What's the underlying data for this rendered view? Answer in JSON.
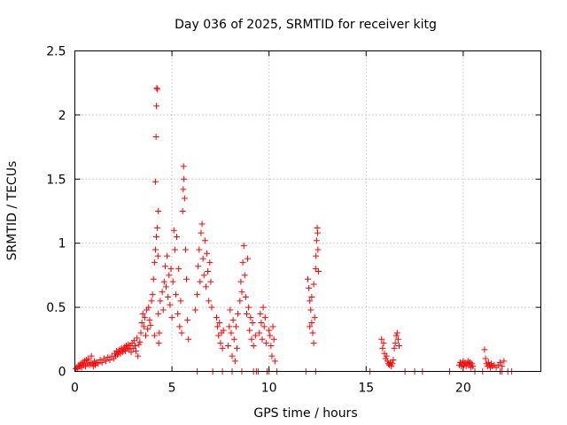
{
  "chart_data": {
    "type": "scatter",
    "title": "Day 036 of 2025, SRMTID for receiver kitg",
    "xlabel": "GPS time / hours",
    "ylabel": "SRMTID / TECUs",
    "xlim": [
      0,
      24
    ],
    "ylim": [
      0,
      2.5
    ],
    "xticks": [
      0,
      5,
      10,
      15,
      20
    ],
    "yticks": [
      0,
      0.5,
      1,
      1.5,
      2,
      2.5
    ],
    "xtick_labels": [
      "0",
      "5",
      "10",
      "15",
      "20"
    ],
    "ytick_labels": [
      "0",
      "0.5",
      "1",
      "1.5",
      "2",
      "2.5"
    ],
    "grid": true,
    "marker": "+",
    "color": "#ff0000",
    "series": [
      {
        "name": "SRMTID",
        "points": [
          [
            0.05,
            0.02
          ],
          [
            0.1,
            0.03
          ],
          [
            0.15,
            0.02
          ],
          [
            0.2,
            0.05
          ],
          [
            0.25,
            0.04
          ],
          [
            0.3,
            0.06
          ],
          [
            0.35,
            0.03
          ],
          [
            0.4,
            0.07
          ],
          [
            0.45,
            0.05
          ],
          [
            0.5,
            0.08
          ],
          [
            0.55,
            0.04
          ],
          [
            0.6,
            0.09
          ],
          [
            0.65,
            0.06
          ],
          [
            0.7,
            0.1
          ],
          [
            0.75,
            0.05
          ],
          [
            0.8,
            0.07
          ],
          [
            0.85,
            0.12
          ],
          [
            0.9,
            0.06
          ],
          [
            0.95,
            0.04
          ],
          [
            1.0,
            0.08
          ],
          [
            1.05,
            0.05
          ],
          [
            1.1,
            0.07
          ],
          [
            1.2,
            0.06
          ],
          [
            1.3,
            0.09
          ],
          [
            1.4,
            0.07
          ],
          [
            1.5,
            0.1
          ],
          [
            1.6,
            0.08
          ],
          [
            1.7,
            0.11
          ],
          [
            1.8,
            0.09
          ],
          [
            1.9,
            0.12
          ],
          [
            2.0,
            0.1
          ],
          [
            2.05,
            0.14
          ],
          [
            2.1,
            0.12
          ],
          [
            2.15,
            0.16
          ],
          [
            2.2,
            0.13
          ],
          [
            2.25,
            0.15
          ],
          [
            2.3,
            0.17
          ],
          [
            2.35,
            0.14
          ],
          [
            2.4,
            0.18
          ],
          [
            2.45,
            0.15
          ],
          [
            2.5,
            0.17
          ],
          [
            2.55,
            0.19
          ],
          [
            2.6,
            0.16
          ],
          [
            2.65,
            0.2
          ],
          [
            2.7,
            0.18
          ],
          [
            2.75,
            0.21
          ],
          [
            2.8,
            0.17
          ],
          [
            2.85,
            0.2
          ],
          [
            2.9,
            0.15
          ],
          [
            2.95,
            0.22
          ],
          [
            3.0,
            0.18
          ],
          [
            3.05,
            0.24
          ],
          [
            3.1,
            0.2
          ],
          [
            3.15,
            0.16
          ],
          [
            3.2,
            0.26
          ],
          [
            3.25,
            0.12
          ],
          [
            3.3,
            0.21
          ],
          [
            3.35,
            0.23
          ],
          [
            3.4,
            0.3
          ],
          [
            3.45,
            0.38
          ],
          [
            3.5,
            0.45
          ],
          [
            3.55,
            0.35
          ],
          [
            3.6,
            0.42
          ],
          [
            3.65,
            0.28
          ],
          [
            3.7,
            0.48
          ],
          [
            3.75,
            0.33
          ],
          [
            3.8,
            0.5
          ],
          [
            3.85,
            0.4
          ],
          [
            3.9,
            0.36
          ],
          [
            3.95,
            0.55
          ],
          [
            4.0,
            0.6
          ],
          [
            4.05,
            0.72
          ],
          [
            4.1,
            0.85
          ],
          [
            4.15,
            0.95
          ],
          [
            4.2,
            1.05
          ],
          [
            4.25,
            1.12
          ],
          [
            4.3,
            1.25
          ],
          [
            4.35,
            0.3
          ],
          [
            4.15,
            1.48
          ],
          [
            4.18,
            1.83
          ],
          [
            4.2,
            2.07
          ],
          [
            4.22,
            2.21
          ],
          [
            4.25,
            2.2
          ],
          [
            4.28,
            0.9
          ],
          [
            4.3,
            0.45
          ],
          [
            4.32,
            0.22
          ],
          [
            4.1,
            0.28
          ],
          [
            4.4,
            0.55
          ],
          [
            4.5,
            0.62
          ],
          [
            4.55,
            0.48
          ],
          [
            4.6,
            0.7
          ],
          [
            4.65,
            0.82
          ],
          [
            4.7,
            0.66
          ],
          [
            4.75,
            0.9
          ],
          [
            4.8,
            0.58
          ],
          [
            4.85,
            0.75
          ],
          [
            4.9,
            0.52
          ],
          [
            4.95,
            0.8
          ],
          [
            5.0,
            0.42
          ],
          [
            5.05,
            0.7
          ],
          [
            5.1,
            1.1
          ],
          [
            5.15,
            0.95
          ],
          [
            5.2,
            0.6
          ],
          [
            5.25,
            1.05
          ],
          [
            5.3,
            0.45
          ],
          [
            5.35,
            0.8
          ],
          [
            5.4,
            0.35
          ],
          [
            5.45,
            0.55
          ],
          [
            5.5,
            0.3
          ],
          [
            5.55,
            1.25
          ],
          [
            5.58,
            1.42
          ],
          [
            5.6,
            1.6
          ],
          [
            5.62,
            1.5
          ],
          [
            5.65,
            1.35
          ],
          [
            5.7,
            0.95
          ],
          [
            5.75,
            0.72
          ],
          [
            5.8,
            0.4
          ],
          [
            5.85,
            0.25
          ],
          [
            6.2,
            0.48
          ],
          [
            6.3,
            0.6
          ],
          [
            6.35,
            0.82
          ],
          [
            6.4,
            0.95
          ],
          [
            6.45,
            0.7
          ],
          [
            6.5,
            1.08
          ],
          [
            6.55,
            1.15
          ],
          [
            6.6,
            0.88
          ],
          [
            6.65,
            0.75
          ],
          [
            6.7,
            1.02
          ],
          [
            6.75,
            0.66
          ],
          [
            6.8,
            0.92
          ],
          [
            6.85,
            0.78
          ],
          [
            6.9,
            0.55
          ],
          [
            6.95,
            0.85
          ],
          [
            7.0,
            0.7
          ],
          [
            7.05,
            0.5
          ],
          [
            7.3,
            0.42
          ],
          [
            7.35,
            0.35
          ],
          [
            7.4,
            0.28
          ],
          [
            7.45,
            0.38
          ],
          [
            7.5,
            0.22
          ],
          [
            7.55,
            0.3
          ],
          [
            7.6,
            0.18
          ],
          [
            7.65,
            0.32
          ],
          [
            7.9,
            0.2
          ],
          [
            7.95,
            0.35
          ],
          [
            8.0,
            0.48
          ],
          [
            8.05,
            0.3
          ],
          [
            8.1,
            0.12
          ],
          [
            8.15,
            0.4
          ],
          [
            8.2,
            0.25
          ],
          [
            8.25,
            0.08
          ],
          [
            8.3,
            0.35
          ],
          [
            8.35,
            0.18
          ],
          [
            8.4,
            0.45
          ],
          [
            8.5,
            0.55
          ],
          [
            8.55,
            0.7
          ],
          [
            8.6,
            0.62
          ],
          [
            8.65,
            0.85
          ],
          [
            8.7,
            0.98
          ],
          [
            8.75,
            0.75
          ],
          [
            8.8,
            0.58
          ],
          [
            8.85,
            0.45
          ],
          [
            8.9,
            0.88
          ],
          [
            8.95,
            0.5
          ],
          [
            9.0,
            0.32
          ],
          [
            9.05,
            0.42
          ],
          [
            9.1,
            0.25
          ],
          [
            9.15,
            0.38
          ],
          [
            9.2,
            0.2
          ],
          [
            9.3,
            0.28
          ],
          [
            9.5,
            0.3
          ],
          [
            9.55,
            0.45
          ],
          [
            9.6,
            0.38
          ],
          [
            9.65,
            0.25
          ],
          [
            9.7,
            0.5
          ],
          [
            9.75,
            0.35
          ],
          [
            9.8,
            0.42
          ],
          [
            9.85,
            0.22
          ],
          [
            10.0,
            0.32
          ],
          [
            10.05,
            0.28
          ],
          [
            10.1,
            0.2
          ],
          [
            10.15,
            0.12
          ],
          [
            10.2,
            0.35
          ],
          [
            10.25,
            0.25
          ],
          [
            10.3,
            0.08
          ],
          [
            12.0,
            0.72
          ],
          [
            12.05,
            0.65
          ],
          [
            12.1,
            0.55
          ],
          [
            12.15,
            0.48
          ],
          [
            12.2,
            0.38
          ],
          [
            12.25,
            0.3
          ],
          [
            12.3,
            0.22
          ],
          [
            12.35,
            0.42
          ],
          [
            12.1,
            0.35
          ],
          [
            12.2,
            0.58
          ],
          [
            12.3,
            0.68
          ],
          [
            12.4,
            0.8
          ],
          [
            12.42,
            0.9
          ],
          [
            12.45,
            1.02
          ],
          [
            12.48,
            1.12
          ],
          [
            12.5,
            1.08
          ],
          [
            12.52,
            0.95
          ],
          [
            12.55,
            0.78
          ],
          [
            15.8,
            0.25
          ],
          [
            15.85,
            0.18
          ],
          [
            15.9,
            0.22
          ],
          [
            15.95,
            0.14
          ],
          [
            16.0,
            0.1
          ],
          [
            16.05,
            0.12
          ],
          [
            16.1,
            0.08
          ],
          [
            16.15,
            0.06
          ],
          [
            16.2,
            0.05
          ],
          [
            16.25,
            0.07
          ],
          [
            16.3,
            0.04
          ],
          [
            16.35,
            0.06
          ],
          [
            16.4,
            0.09
          ],
          [
            16.45,
            0.18
          ],
          [
            16.5,
            0.22
          ],
          [
            16.55,
            0.28
          ],
          [
            16.6,
            0.3
          ],
          [
            16.65,
            0.25
          ],
          [
            16.7,
            0.2
          ],
          [
            19.8,
            0.05
          ],
          [
            19.85,
            0.07
          ],
          [
            19.9,
            0.04
          ],
          [
            19.95,
            0.06
          ],
          [
            20.0,
            0.08
          ],
          [
            20.05,
            0.05
          ],
          [
            20.1,
            0.07
          ],
          [
            20.15,
            0.04
          ],
          [
            20.2,
            0.06
          ],
          [
            20.25,
            0.08
          ],
          [
            20.3,
            0.05
          ],
          [
            20.35,
            0.07
          ],
          [
            20.4,
            0.03
          ],
          [
            20.45,
            0.06
          ],
          [
            20.5,
            0.04
          ],
          [
            21.1,
            0.17
          ],
          [
            21.15,
            0.1
          ],
          [
            21.2,
            0.06
          ],
          [
            21.25,
            0.04
          ],
          [
            21.3,
            0.07
          ],
          [
            21.35,
            0.05
          ],
          [
            21.4,
            0.03
          ],
          [
            21.45,
            0.06
          ],
          [
            21.5,
            0.04
          ],
          [
            21.6,
            0.05
          ],
          [
            21.7,
            0.03
          ],
          [
            21.8,
            0.05
          ],
          [
            21.9,
            0.07
          ],
          [
            22.0,
            0.04
          ],
          [
            22.1,
            0.08
          ],
          [
            6.3,
            0
          ],
          [
            7.1,
            0
          ],
          [
            7.6,
            0
          ],
          [
            8.1,
            0
          ],
          [
            8.6,
            0
          ],
          [
            9.2,
            0
          ],
          [
            9.35,
            0
          ],
          [
            9.45,
            0
          ],
          [
            9.9,
            0
          ],
          [
            10.0,
            0
          ],
          [
            10.4,
            0
          ],
          [
            11.9,
            0
          ],
          [
            12.4,
            0
          ],
          [
            15.2,
            0
          ],
          [
            17.0,
            0
          ],
          [
            17.5,
            0
          ],
          [
            17.9,
            0
          ],
          [
            19.3,
            0
          ],
          [
            20.6,
            0
          ],
          [
            21.0,
            0
          ],
          [
            21.9,
            0
          ],
          [
            22.0,
            0
          ],
          [
            22.3,
            0
          ],
          [
            22.5,
            0
          ]
        ]
      }
    ]
  }
}
